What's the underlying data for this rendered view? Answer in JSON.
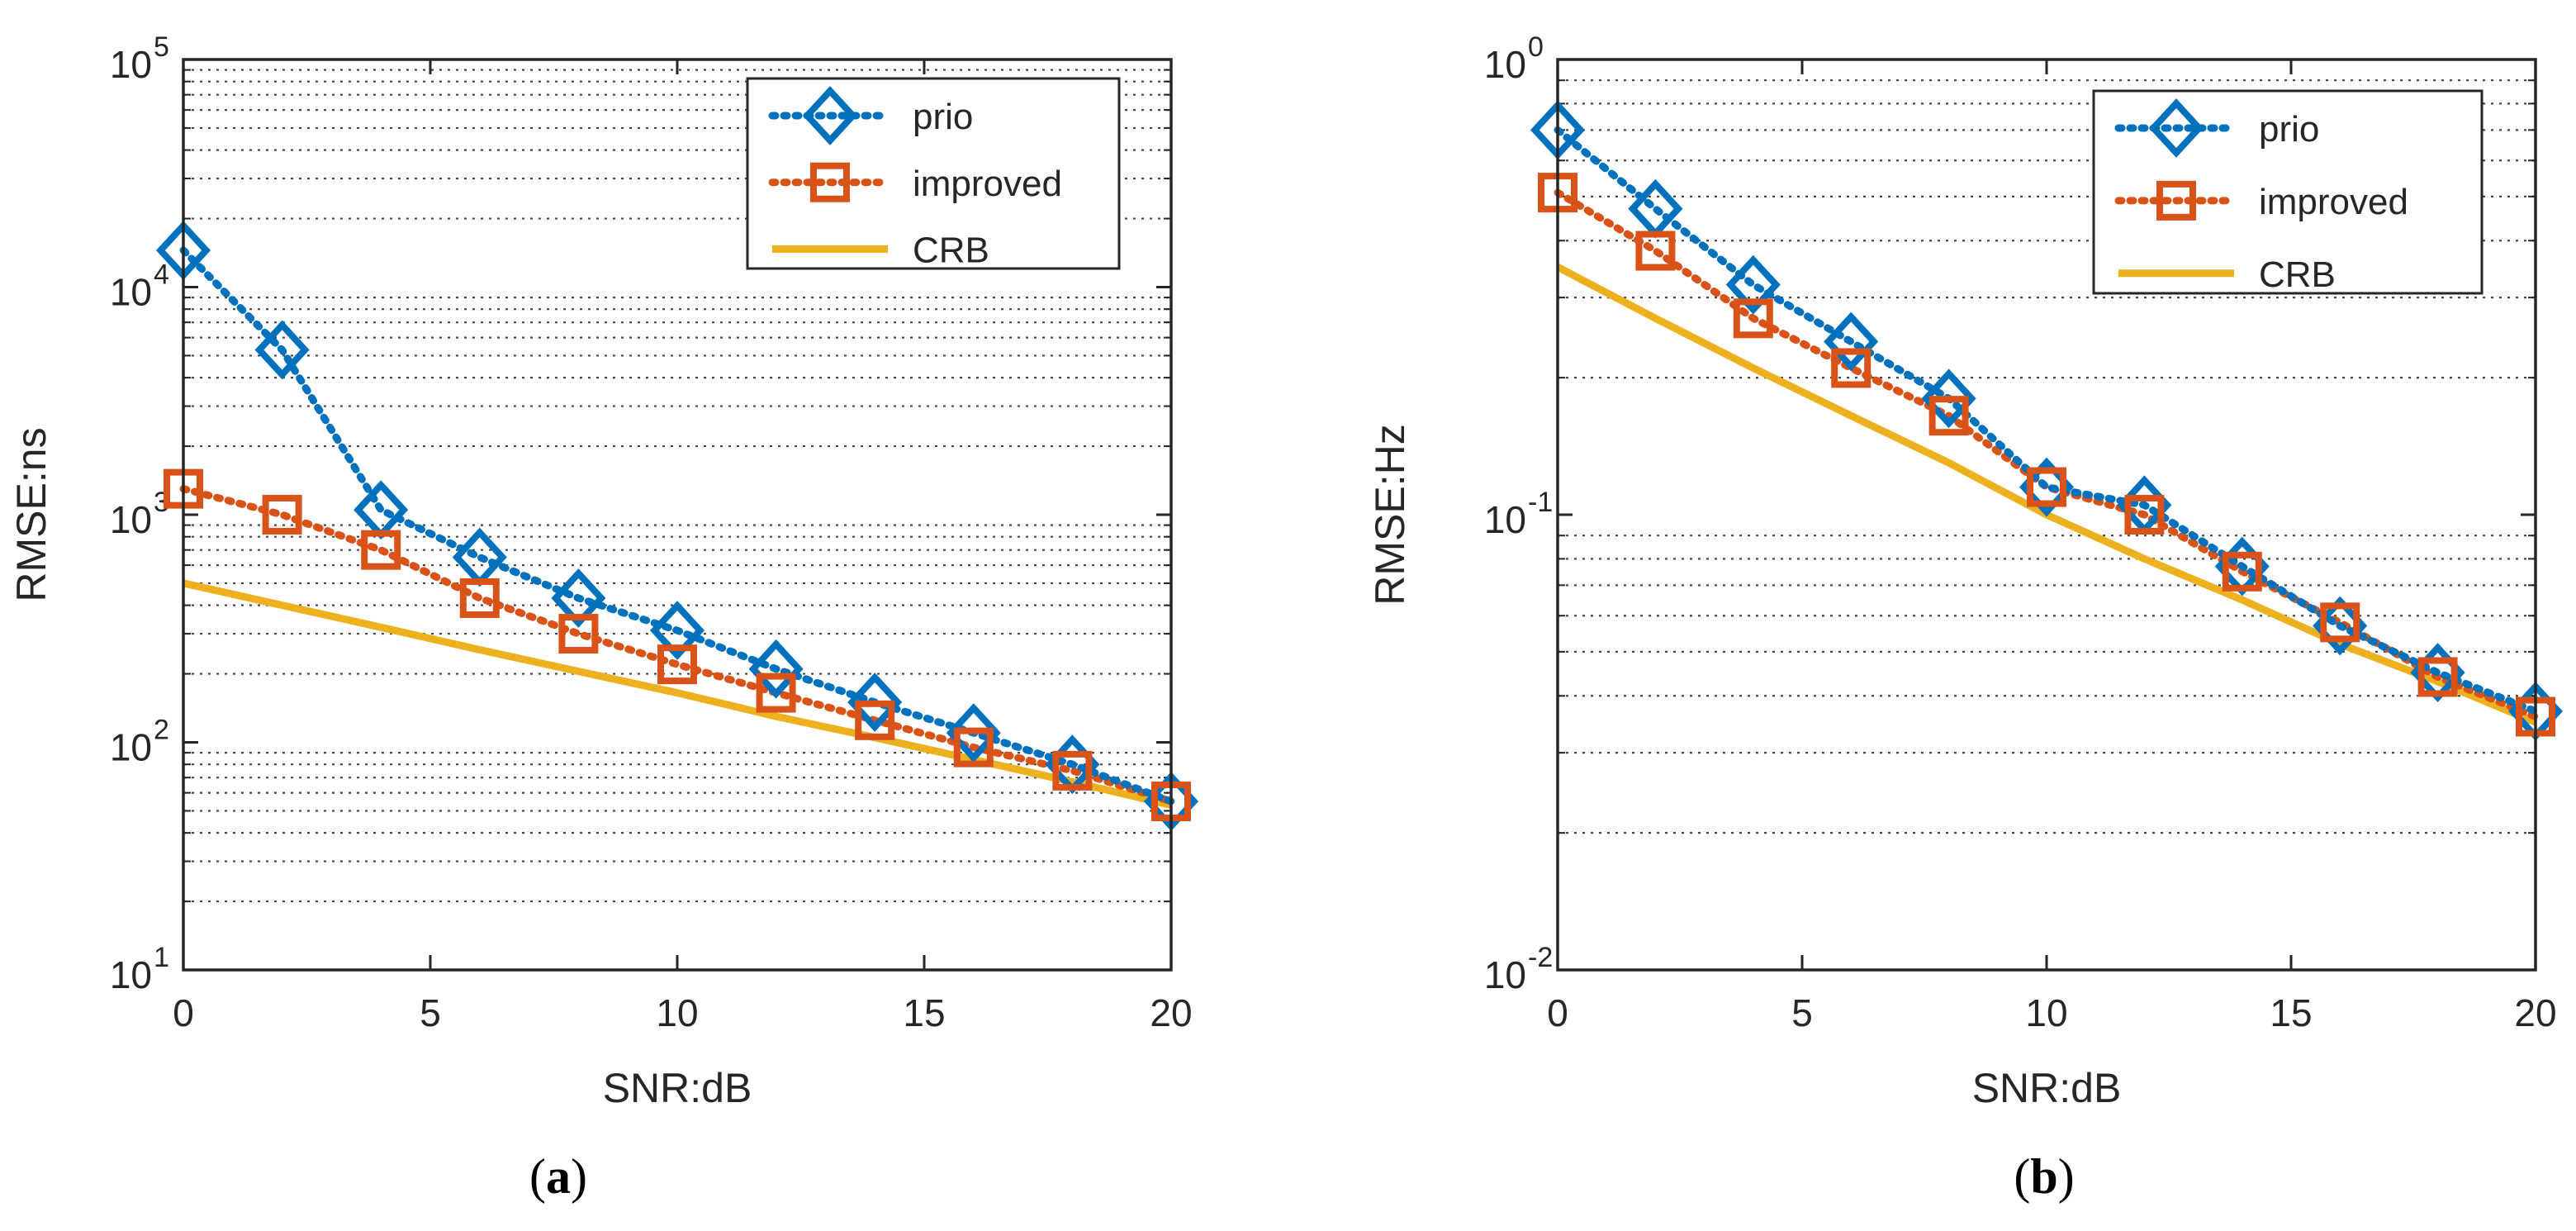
{
  "colors": {
    "prio": "#0072BD",
    "improved": "#D95319",
    "crb": "#EDB120",
    "axis": "#262626",
    "grid": "#262626"
  },
  "chart_data": [
    {
      "type": "line",
      "panel": "a",
      "caption": {
        "open": "(",
        "letter": "a",
        "close": ")"
      },
      "xlabel": "SNR:dB",
      "ylabel": "RMSE:ns",
      "yscale": "log",
      "xlim": [
        0,
        20
      ],
      "ylim": [
        10,
        100000
      ],
      "xticks": [
        0,
        5,
        10,
        15,
        20
      ],
      "xtick_labels": [
        "0",
        "5",
        "10",
        "15",
        "20"
      ],
      "ytick_decades": [
        1,
        2,
        3,
        4,
        5
      ],
      "ytick_base": "10",
      "grid": "minor dotted",
      "legend_position": "top-right",
      "x": [
        0,
        2,
        4,
        6,
        8,
        10,
        12,
        14,
        16,
        18,
        20
      ],
      "series": [
        {
          "name": "prio",
          "marker": "diamond",
          "line": "dotted",
          "values": [
            14500,
            5300,
            1050,
            650,
            430,
            310,
            210,
            150,
            110,
            80,
            55
          ]
        },
        {
          "name": "improved",
          "marker": "square",
          "line": "dotted",
          "values": [
            1300,
            1000,
            700,
            430,
            300,
            220,
            165,
            125,
            95,
            75,
            55
          ]
        },
        {
          "name": "CRB",
          "marker": "none",
          "line": "solid",
          "values": [
            500,
            400,
            320,
            255,
            205,
            165,
            130,
            105,
            84,
            67,
            53
          ]
        }
      ]
    },
    {
      "type": "line",
      "panel": "b",
      "caption": {
        "open": "(",
        "letter": "b",
        "close": ")"
      },
      "xlabel": "SNR:dB",
      "ylabel": "RMSE:Hz",
      "yscale": "log",
      "xlim": [
        0,
        20
      ],
      "ylim": [
        0.01,
        1
      ],
      "xticks": [
        0,
        5,
        10,
        15,
        20
      ],
      "xtick_labels": [
        "0",
        "5",
        "10",
        "15",
        "20"
      ],
      "ytick_decades": [
        -2,
        -1,
        0
      ],
      "ytick_base": "10",
      "grid": "minor dotted",
      "legend_position": "top-right",
      "x": [
        0,
        2,
        4,
        6,
        8,
        10,
        12,
        14,
        16,
        18,
        20
      ],
      "series": [
        {
          "name": "prio",
          "marker": "diamond",
          "line": "dotted",
          "values": [
            0.7,
            0.47,
            0.32,
            0.24,
            0.18,
            0.115,
            0.105,
            0.077,
            0.057,
            0.045,
            0.037
          ]
        },
        {
          "name": "improved",
          "marker": "square",
          "line": "dotted",
          "values": [
            0.51,
            0.38,
            0.27,
            0.21,
            0.165,
            0.115,
            0.1,
            0.075,
            0.058,
            0.044,
            0.036
          ]
        },
        {
          "name": "CRB",
          "marker": "none",
          "line": "solid",
          "values": [
            0.35,
            0.27,
            0.21,
            0.165,
            0.13,
            0.1,
            0.08,
            0.065,
            0.052,
            0.043,
            0.035
          ]
        }
      ]
    }
  ]
}
